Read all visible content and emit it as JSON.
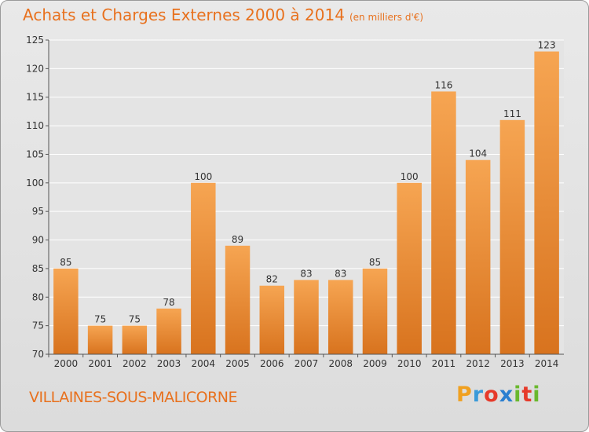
{
  "title": "Achats et Charges Externes 2000 à 2014",
  "title_unit": "(en milliers d'€)",
  "commune": "VILLAINES-SOUS-MALICORNE",
  "logo": {
    "letters": [
      "P",
      "r",
      "o",
      "x",
      "i",
      "t",
      "i"
    ],
    "colors": [
      "#f0a020",
      "#3a9ad9",
      "#e63a2a",
      "#2a7fd0",
      "#6ab82e",
      "#e63a2a",
      "#6ab82e"
    ]
  },
  "colors": {
    "bar_top": "#f6a552",
    "bar_bottom": "#d8731e",
    "text": "#e8711e",
    "axis": "#555555"
  },
  "chart_data": {
    "type": "bar",
    "categories": [
      "2000",
      "2001",
      "2002",
      "2003",
      "2004",
      "2005",
      "2006",
      "2007",
      "2008",
      "2009",
      "2010",
      "2011",
      "2012",
      "2013",
      "2014"
    ],
    "values": [
      85,
      75,
      75,
      78,
      100,
      89,
      82,
      83,
      83,
      85,
      100,
      116,
      104,
      111,
      123
    ],
    "ylim": [
      70,
      125
    ],
    "yticks": [
      70,
      75,
      80,
      85,
      90,
      95,
      100,
      105,
      110,
      115,
      120,
      125
    ],
    "grid": true
  }
}
